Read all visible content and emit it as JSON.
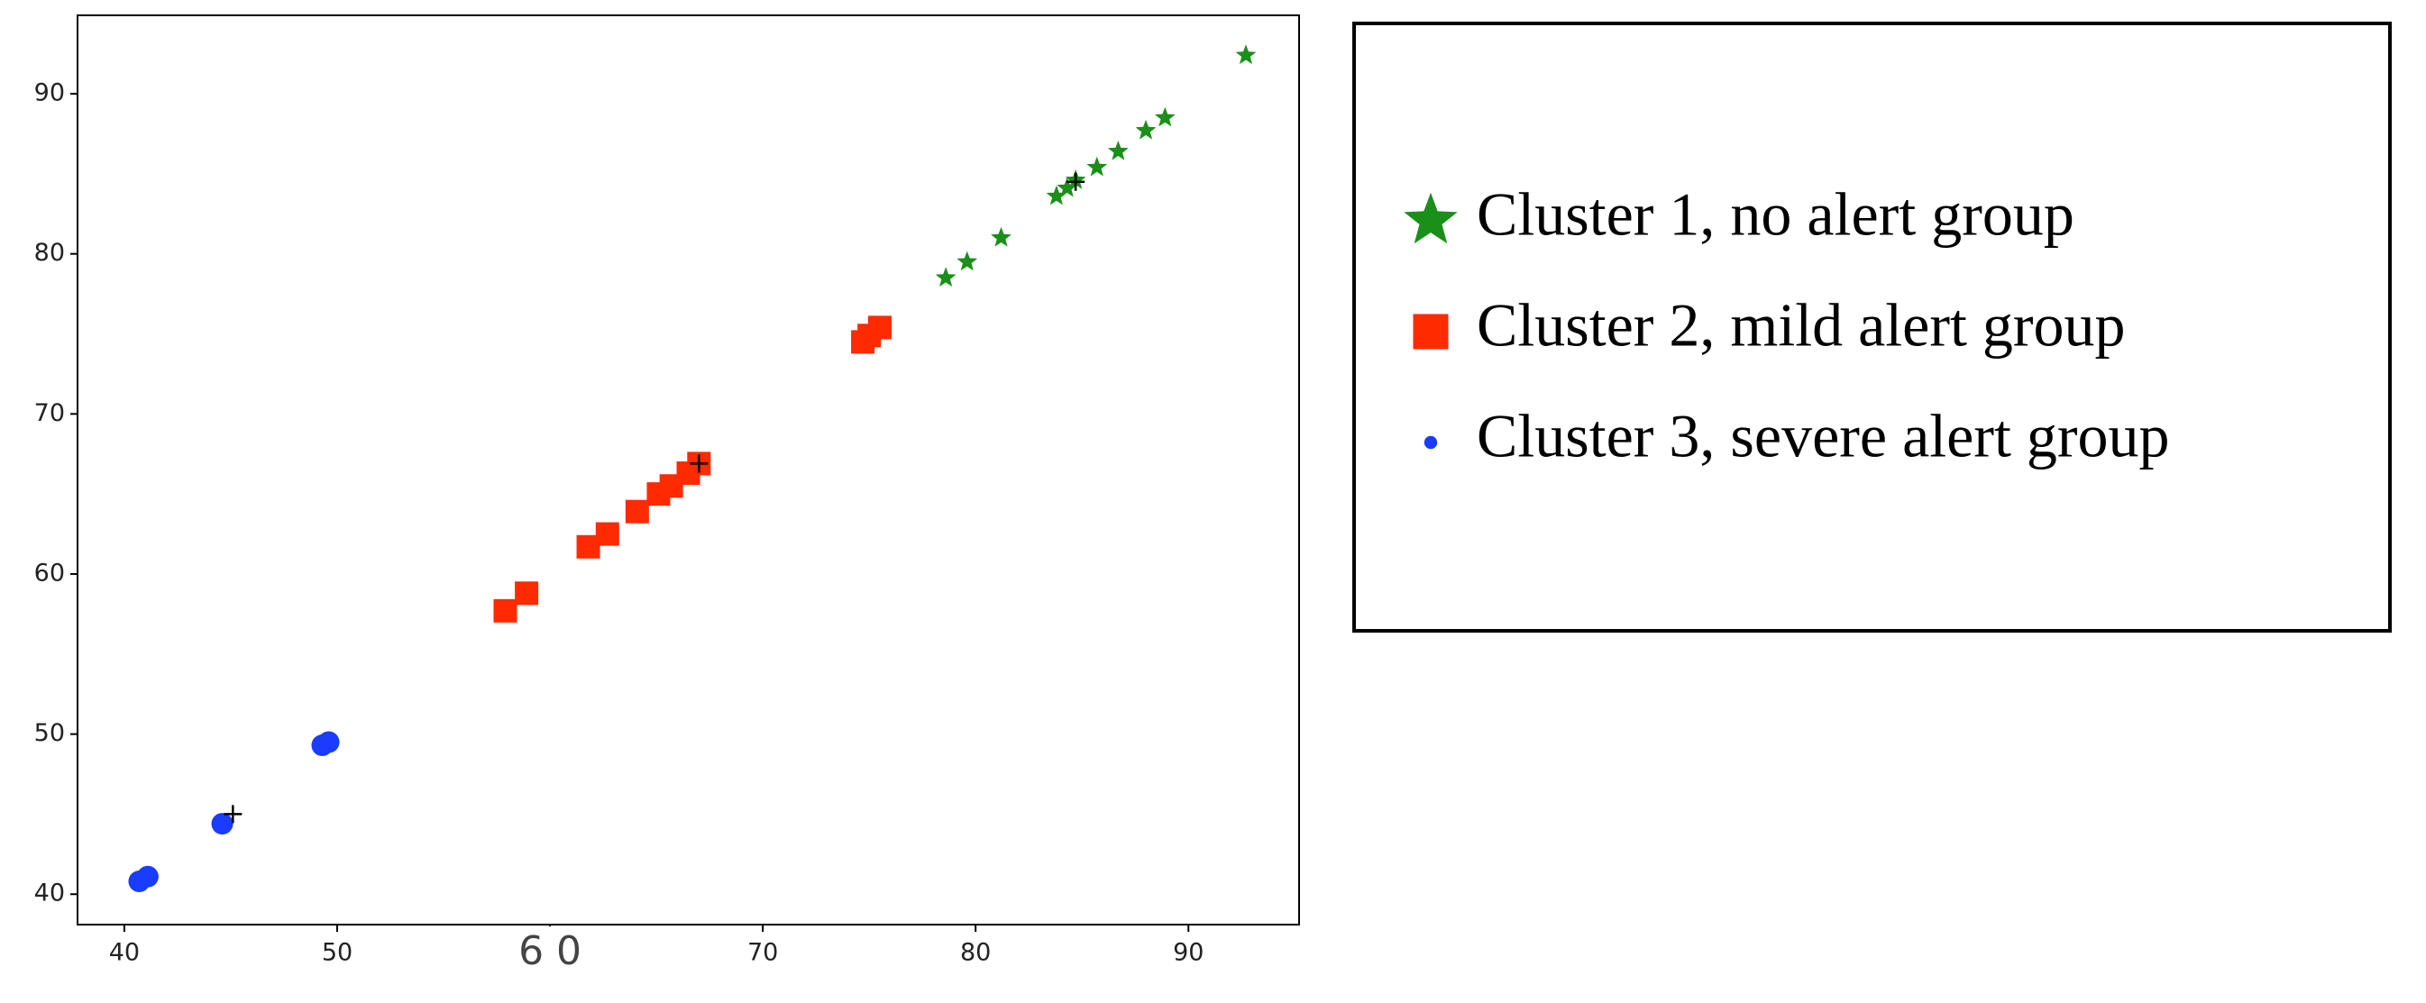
{
  "chart_data": {
    "type": "scatter",
    "xlim": [
      37.8,
      95.2
    ],
    "ylim": [
      38.1,
      94.9
    ],
    "xticks": [
      40,
      50,
      {
        "value": 60,
        "label": "6 0"
      },
      70,
      80,
      90
    ],
    "yticks": [
      40,
      50,
      60,
      70,
      80,
      90
    ],
    "series": [
      {
        "name": "Cluster 1, no alert group",
        "color": "#1a8f1a",
        "marker": "star",
        "x": [
          78.6,
          79.6,
          81.2,
          83.8,
          84.3,
          84.7,
          85.7,
          86.7,
          88.0,
          88.9,
          92.7
        ],
        "values": [
          78.5,
          79.5,
          81.0,
          83.6,
          84.1,
          84.6,
          85.4,
          86.4,
          87.7,
          88.5,
          92.4
        ]
      },
      {
        "name": "Cluster 2, mild alert group",
        "color": "#ff2a00",
        "marker": "square",
        "x": [
          57.9,
          58.9,
          61.8,
          62.7,
          64.1,
          65.1,
          65.7,
          66.5,
          67.0,
          74.7,
          75.0,
          75.5
        ],
        "values": [
          57.7,
          58.8,
          61.7,
          62.5,
          63.9,
          65.0,
          65.5,
          66.3,
          66.9,
          74.5,
          74.9,
          75.4
        ]
      },
      {
        "name": "Cluster 3, severe alert group",
        "color": "#1a3cff",
        "marker": "circle",
        "x": [
          40.7,
          41.1,
          44.6,
          49.3,
          49.6
        ],
        "values": [
          40.8,
          41.1,
          44.4,
          49.3,
          49.5
        ]
      },
      {
        "color": "#000000",
        "marker": "plus",
        "x": [
          45.1,
          67.0,
          84.7
        ],
        "values": [
          45.0,
          66.9,
          84.5
        ]
      }
    ]
  }
}
